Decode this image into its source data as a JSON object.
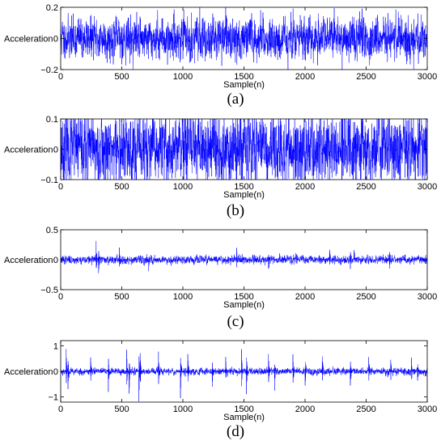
{
  "chart_data": [
    {
      "type": "line",
      "panel_label": "(a)",
      "xlabel": "Sample(n)",
      "ylabel": "Acceleration",
      "xlim": [
        0,
        3000
      ],
      "ylim": [
        -0.2,
        0.2
      ],
      "xticks": [
        0,
        500,
        1000,
        1500,
        2000,
        2500,
        3000
      ],
      "yticks": [
        -0.2,
        0,
        0.2
      ],
      "ytick_labels": [
        "−0.2",
        "0",
        "0.2"
      ],
      "grid": false,
      "signal": {
        "style": "random vibration",
        "amplitude": 0.06,
        "n": 3000,
        "seed": 11
      },
      "color": "#0000ff"
    },
    {
      "type": "line",
      "panel_label": "(b)",
      "xlabel": "Sample(n)",
      "ylabel": "Acceleration",
      "xlim": [
        0,
        3000
      ],
      "ylim": [
        -0.1,
        0.1
      ],
      "xticks": [
        0,
        500,
        1000,
        1500,
        2000,
        2500,
        3000
      ],
      "yticks": [
        -0.1,
        0,
        0.1
      ],
      "ytick_labels": [
        "−0.1",
        "0",
        "0.1"
      ],
      "grid": false,
      "signal": {
        "style": "random vibration",
        "amplitude": 0.055,
        "n": 3000,
        "seed": 23
      },
      "color": "#0000ff"
    },
    {
      "type": "line",
      "panel_label": "(c)",
      "xlabel": "Sample(n)",
      "ylabel": "Acceleration",
      "xlim": [
        0,
        3000
      ],
      "ylim": [
        -0.5,
        0.5
      ],
      "xticks": [
        0,
        500,
        1000,
        1500,
        2000,
        2500,
        3000
      ],
      "yticks": [
        -0.5,
        0,
        0.5
      ],
      "ytick_labels": [
        "−0.5",
        "0",
        "0.5"
      ],
      "grid": false,
      "signal": {
        "style": "noise with impulses",
        "amplitude": 0.03,
        "n": 3000,
        "seed": 37,
        "impulses": [
          [
            290,
            0.28
          ],
          [
            310,
            -0.25
          ],
          [
            480,
            0.2
          ],
          [
            720,
            -0.12
          ],
          [
            1440,
            0.22
          ],
          [
            1700,
            -0.15
          ],
          [
            2200,
            0.15
          ],
          [
            2370,
            -0.2
          ],
          [
            2400,
            0.12
          ],
          [
            2690,
            -0.18
          ]
        ]
      },
      "color": "#0000ff"
    },
    {
      "type": "line",
      "panel_label": "(d)",
      "xlabel": "Sample(n)",
      "ylabel": "Acceleration",
      "xlim": [
        0,
        3000
      ],
      "ylim": [
        -1.2,
        1.2
      ],
      "xticks": [
        0,
        500,
        1000,
        1500,
        2000,
        2500,
        3000
      ],
      "yticks": [
        -1,
        0,
        1
      ],
      "ytick_labels": [
        "−1",
        "0",
        "1"
      ],
      "grid": false,
      "signal": {
        "style": "noise with periodic impulses",
        "amplitude": 0.06,
        "n": 3000,
        "seed": 53,
        "impulses": [
          [
            45,
            0.9
          ],
          [
            60,
            -0.7
          ],
          [
            245,
            0.55
          ],
          [
            390,
            -0.8
          ],
          [
            540,
            0.85
          ],
          [
            560,
            -0.9
          ],
          [
            640,
            -1.1
          ],
          [
            650,
            0.8
          ],
          [
            800,
            0.8
          ],
          [
            980,
            -1.0
          ],
          [
            1040,
            0.7
          ],
          [
            1240,
            -0.6
          ],
          [
            1350,
            0.55
          ],
          [
            1480,
            0.95
          ],
          [
            1520,
            -0.9
          ],
          [
            1700,
            0.7
          ],
          [
            1750,
            -0.6
          ],
          [
            1900,
            0.65
          ],
          [
            2000,
            -0.6
          ],
          [
            2140,
            0.7
          ],
          [
            2370,
            -0.55
          ],
          [
            2520,
            0.6
          ],
          [
            2700,
            0.5
          ],
          [
            2870,
            0.55
          ],
          [
            2920,
            -0.45
          ]
        ]
      },
      "color": "#0000ff"
    }
  ]
}
